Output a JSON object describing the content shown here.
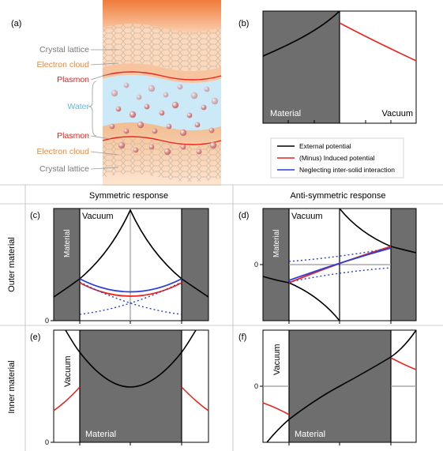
{
  "panel_a": {
    "label": "(a)",
    "crystal_lattice_top": "Crystal lattice",
    "electron_cloud_top": "Electron cloud",
    "plasmon_top": "Plasmon",
    "water": "Water",
    "plasmon_bottom": "Plasmon",
    "electron_cloud_bottom": "Electron cloud",
    "crystal_lattice_bottom": "Crystal lattice"
  },
  "panel_b": {
    "label": "(b)",
    "material": "Material",
    "vacuum": "Vacuum"
  },
  "legend": {
    "items": [
      {
        "label": "External potential",
        "color": "#000000"
      },
      {
        "label": "(Minus) Induced potential",
        "color": "#e8251f"
      },
      {
        "label": "Neglecting inter-solid interaction",
        "color": "#2b3fd8"
      }
    ]
  },
  "columns": {
    "symmetric": "Symmetric response",
    "antisymmetric": "Anti-symmetric response"
  },
  "rows": {
    "outer": "Outer material",
    "inner": "Inner material"
  },
  "panel_c": {
    "label": "(c)",
    "vacuum": "Vacuum",
    "material": "Material",
    "tick_zero": "0"
  },
  "panel_d": {
    "label": "(d)",
    "vacuum": "Vacuum",
    "material": "Material",
    "tick_zero": "0"
  },
  "panel_e": {
    "label": "(e)",
    "vacuum": "Vacuum",
    "material": "Material",
    "tick_zero": "0"
  },
  "panel_f": {
    "label": "(f)",
    "vacuum": "Vacuum",
    "material": "Material",
    "tick_zero": "0"
  },
  "colors": {
    "material": "#6e6e6e",
    "red": "#e8251f",
    "blue": "#2b3fd8",
    "water": "#bfe3f5",
    "cloud": "#f5a56c"
  }
}
